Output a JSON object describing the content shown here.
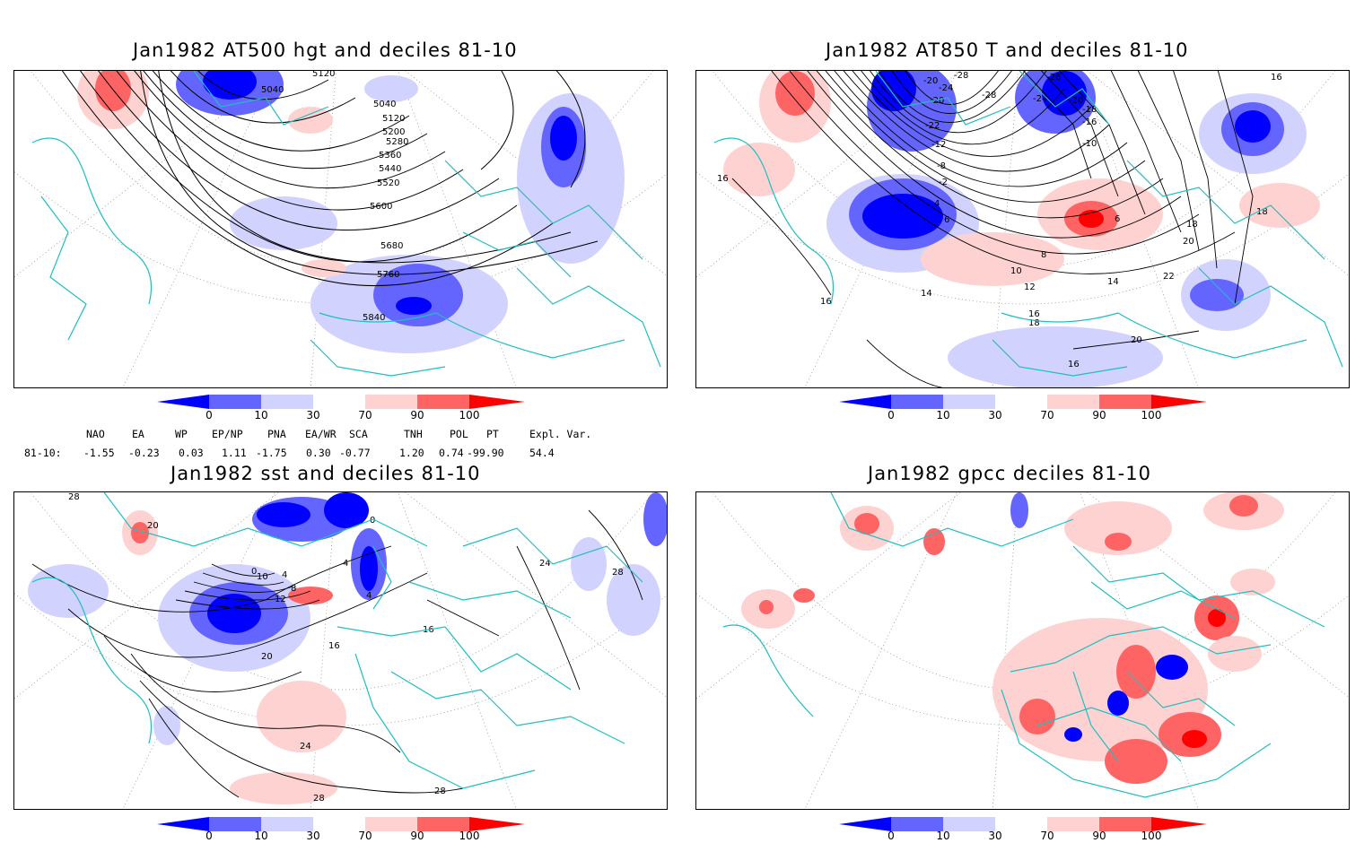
{
  "panels": [
    {
      "id": "hgt500",
      "title": "Jan1982 AT500 hgt and deciles 81-10",
      "contour_labels": [
        "5120",
        "5040",
        "5040",
        "5120",
        "5200",
        "5280",
        "5360",
        "5440",
        "5520",
        "5600",
        "5680",
        "5760",
        "5840"
      ]
    },
    {
      "id": "t850",
      "title": "Jan1982 AT850 T and deciles 81-10",
      "contour_labels": [
        "-28",
        "-20",
        "-24",
        "-26",
        "-28",
        "-20",
        "-24",
        "-20",
        "-18",
        "-16",
        "-22",
        "-12",
        "-10",
        "-8",
        "-2",
        "4",
        "6",
        "6",
        "8",
        "10",
        "12",
        "14",
        "16",
        "16",
        "16",
        "14",
        "16",
        "18",
        "20",
        "22",
        "18",
        "20",
        "16",
        "18"
      ]
    },
    {
      "id": "sst",
      "title": "Jan1982 sst and deciles 81-10",
      "contour_labels": [
        "20",
        "0",
        "10",
        "4",
        "4",
        "8",
        "12",
        "16",
        "20",
        "24",
        "28",
        "28",
        "28",
        "24",
        "16",
        "4",
        "28",
        "0"
      ]
    },
    {
      "id": "gpcc",
      "title": "Jan1982 gpcc deciles 81-10",
      "contour_labels": []
    }
  ],
  "colorbar": {
    "tick_labels": [
      "0",
      "10",
      "30",
      "70",
      "90",
      "100"
    ],
    "colors": [
      "#0000ff",
      "#6464ff",
      "#d2d2ff",
      "#ffffff",
      "#ffd2d2",
      "#ff6464",
      "#ff0000"
    ]
  },
  "indices": {
    "headers": [
      "NAO",
      "EA",
      "WP",
      "EP/NP",
      "PNA",
      "EA/WR",
      "SCA",
      "TNH",
      "POL",
      "PT",
      "Expl. Var."
    ],
    "row_label": "81-10:",
    "values": [
      "-1.55",
      "-0.23",
      "0.03",
      "1.11",
      "-1.75",
      "0.30",
      "-0.77",
      "1.20",
      "0.74",
      "-99.90",
      "54.4"
    ]
  }
}
